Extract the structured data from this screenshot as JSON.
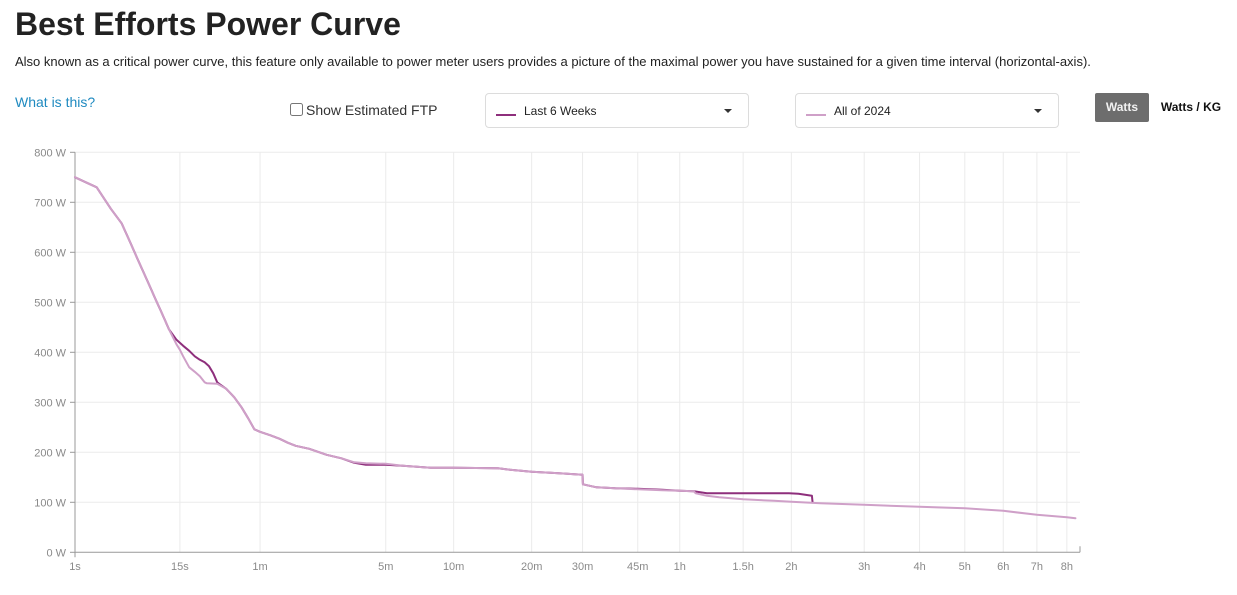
{
  "page": {
    "title": "Best Efforts Power Curve",
    "description": "Also known as a critical power curve, this feature only available to power meter users provides a picture of the maximal power you have sustained for a given time interval (horizontal-axis).",
    "help_link": "What is this?"
  },
  "controls": {
    "show_ftp": {
      "label": "Show Estimated FTP",
      "checked": false
    },
    "range_primary": {
      "value": "Last 6 Weeks",
      "color": "#8e2f7c"
    },
    "range_secondary": {
      "value": "All of 2024",
      "color": "#cfa0c8"
    },
    "units": {
      "options": [
        "Watts",
        "Watts / KG"
      ],
      "selected": "Watts"
    }
  },
  "chart_data": {
    "type": "line",
    "title": "Best Efforts Power Curve",
    "xlabel": "",
    "ylabel": "",
    "x_unit": "seconds",
    "y_unit": "W",
    "x_scale": {
      "type": "pow",
      "exponent": 0.2
    },
    "xlim": [
      1,
      30500
    ],
    "ylim": [
      0,
      800
    ],
    "grid": true,
    "legend": "top (range selectors)",
    "x_ticks": [
      {
        "value": 1,
        "label": "1s"
      },
      {
        "value": 15,
        "label": "15s"
      },
      {
        "value": 60,
        "label": "1m"
      },
      {
        "value": 300,
        "label": "5m"
      },
      {
        "value": 600,
        "label": "10m"
      },
      {
        "value": 1200,
        "label": "20m"
      },
      {
        "value": 1800,
        "label": "30m"
      },
      {
        "value": 2700,
        "label": "45m"
      },
      {
        "value": 3600,
        "label": "1h"
      },
      {
        "value": 5400,
        "label": "1.5h"
      },
      {
        "value": 7200,
        "label": "2h"
      },
      {
        "value": 10800,
        "label": "3h"
      },
      {
        "value": 14400,
        "label": "4h"
      },
      {
        "value": 18000,
        "label": "5h"
      },
      {
        "value": 21600,
        "label": "6h"
      },
      {
        "value": 25200,
        "label": "7h"
      },
      {
        "value": 28800,
        "label": "8h"
      }
    ],
    "y_ticks": [
      {
        "value": 0,
        "label": "0 W"
      },
      {
        "value": 100,
        "label": "100 W"
      },
      {
        "value": 200,
        "label": "200 W"
      },
      {
        "value": 300,
        "label": "300 W"
      },
      {
        "value": 400,
        "label": "400 W"
      },
      {
        "value": 500,
        "label": "500 W"
      },
      {
        "value": 600,
        "label": "600 W"
      },
      {
        "value": 700,
        "label": "700 W"
      },
      {
        "value": 800,
        "label": "800 W"
      }
    ],
    "series": [
      {
        "name": "Last 6 Weeks",
        "color": "#8e2f7c",
        "points": [
          [
            1,
            750
          ],
          [
            2,
            730
          ],
          [
            3,
            687
          ],
          [
            4,
            658
          ],
          [
            5,
            619
          ],
          [
            6,
            585
          ],
          [
            7,
            556
          ],
          [
            8,
            530
          ],
          [
            9,
            506
          ],
          [
            10,
            485
          ],
          [
            11,
            465
          ],
          [
            12,
            446
          ],
          [
            14,
            425
          ],
          [
            16,
            413
          ],
          [
            18,
            403
          ],
          [
            20,
            392
          ],
          [
            22,
            385
          ],
          [
            24,
            380
          ],
          [
            26,
            372
          ],
          [
            28,
            358
          ],
          [
            30,
            340
          ],
          [
            31,
            337
          ],
          [
            35,
            327
          ],
          [
            40,
            310
          ],
          [
            45,
            290
          ],
          [
            50,
            268
          ],
          [
            55,
            246
          ],
          [
            60,
            241
          ],
          [
            70,
            234
          ],
          [
            80,
            227
          ],
          [
            90,
            219
          ],
          [
            100,
            213
          ],
          [
            120,
            207
          ],
          [
            150,
            195
          ],
          [
            180,
            188
          ],
          [
            210,
            179
          ],
          [
            240,
            175
          ],
          [
            300,
            175
          ],
          [
            360,
            173
          ],
          [
            480,
            169
          ],
          [
            600,
            169
          ],
          [
            900,
            168
          ],
          [
            1000,
            165
          ],
          [
            1200,
            161
          ],
          [
            1500,
            158
          ],
          [
            1800,
            155
          ],
          [
            1805,
            136
          ],
          [
            2000,
            130
          ],
          [
            2300,
            128
          ],
          [
            2700,
            127
          ],
          [
            3200,
            125
          ],
          [
            3600,
            123
          ],
          [
            3950,
            122
          ],
          [
            4300,
            118
          ],
          [
            5400,
            118
          ],
          [
            7100,
            118
          ],
          [
            7500,
            117
          ],
          [
            8100,
            113
          ],
          [
            8130,
            100
          ]
        ]
      },
      {
        "name": "All of 2024",
        "color": "#cfa0c8",
        "points": [
          [
            1,
            750
          ],
          [
            2,
            730
          ],
          [
            3,
            687
          ],
          [
            4,
            658
          ],
          [
            5,
            619
          ],
          [
            6,
            585
          ],
          [
            7,
            556
          ],
          [
            8,
            530
          ],
          [
            9,
            506
          ],
          [
            10,
            485
          ],
          [
            11,
            465
          ],
          [
            12,
            446
          ],
          [
            14,
            416
          ],
          [
            15,
            405
          ],
          [
            16,
            392
          ],
          [
            18,
            370
          ],
          [
            20,
            361
          ],
          [
            22,
            352
          ],
          [
            24,
            340
          ],
          [
            25,
            338
          ],
          [
            30,
            337
          ],
          [
            35,
            327
          ],
          [
            40,
            310
          ],
          [
            45,
            290
          ],
          [
            50,
            268
          ],
          [
            55,
            246
          ],
          [
            60,
            241
          ],
          [
            70,
            234
          ],
          [
            80,
            227
          ],
          [
            90,
            219
          ],
          [
            100,
            213
          ],
          [
            120,
            207
          ],
          [
            150,
            195
          ],
          [
            180,
            188
          ],
          [
            210,
            180
          ],
          [
            240,
            178
          ],
          [
            300,
            177
          ],
          [
            360,
            173
          ],
          [
            480,
            169
          ],
          [
            600,
            169
          ],
          [
            900,
            168
          ],
          [
            1000,
            165
          ],
          [
            1200,
            161
          ],
          [
            1500,
            158
          ],
          [
            1800,
            155
          ],
          [
            1805,
            136
          ],
          [
            2000,
            130
          ],
          [
            2300,
            128
          ],
          [
            2700,
            126
          ],
          [
            3200,
            124
          ],
          [
            3600,
            123
          ],
          [
            3950,
            122
          ],
          [
            4000,
            118
          ],
          [
            4300,
            113
          ],
          [
            4650,
            110
          ],
          [
            5400,
            106
          ],
          [
            6500,
            103
          ],
          [
            7200,
            101
          ],
          [
            8500,
            98
          ],
          [
            10800,
            95
          ],
          [
            14400,
            91
          ],
          [
            18000,
            88
          ],
          [
            21600,
            83
          ],
          [
            25200,
            75
          ],
          [
            28800,
            70
          ],
          [
            29900,
            68
          ]
        ]
      }
    ]
  }
}
